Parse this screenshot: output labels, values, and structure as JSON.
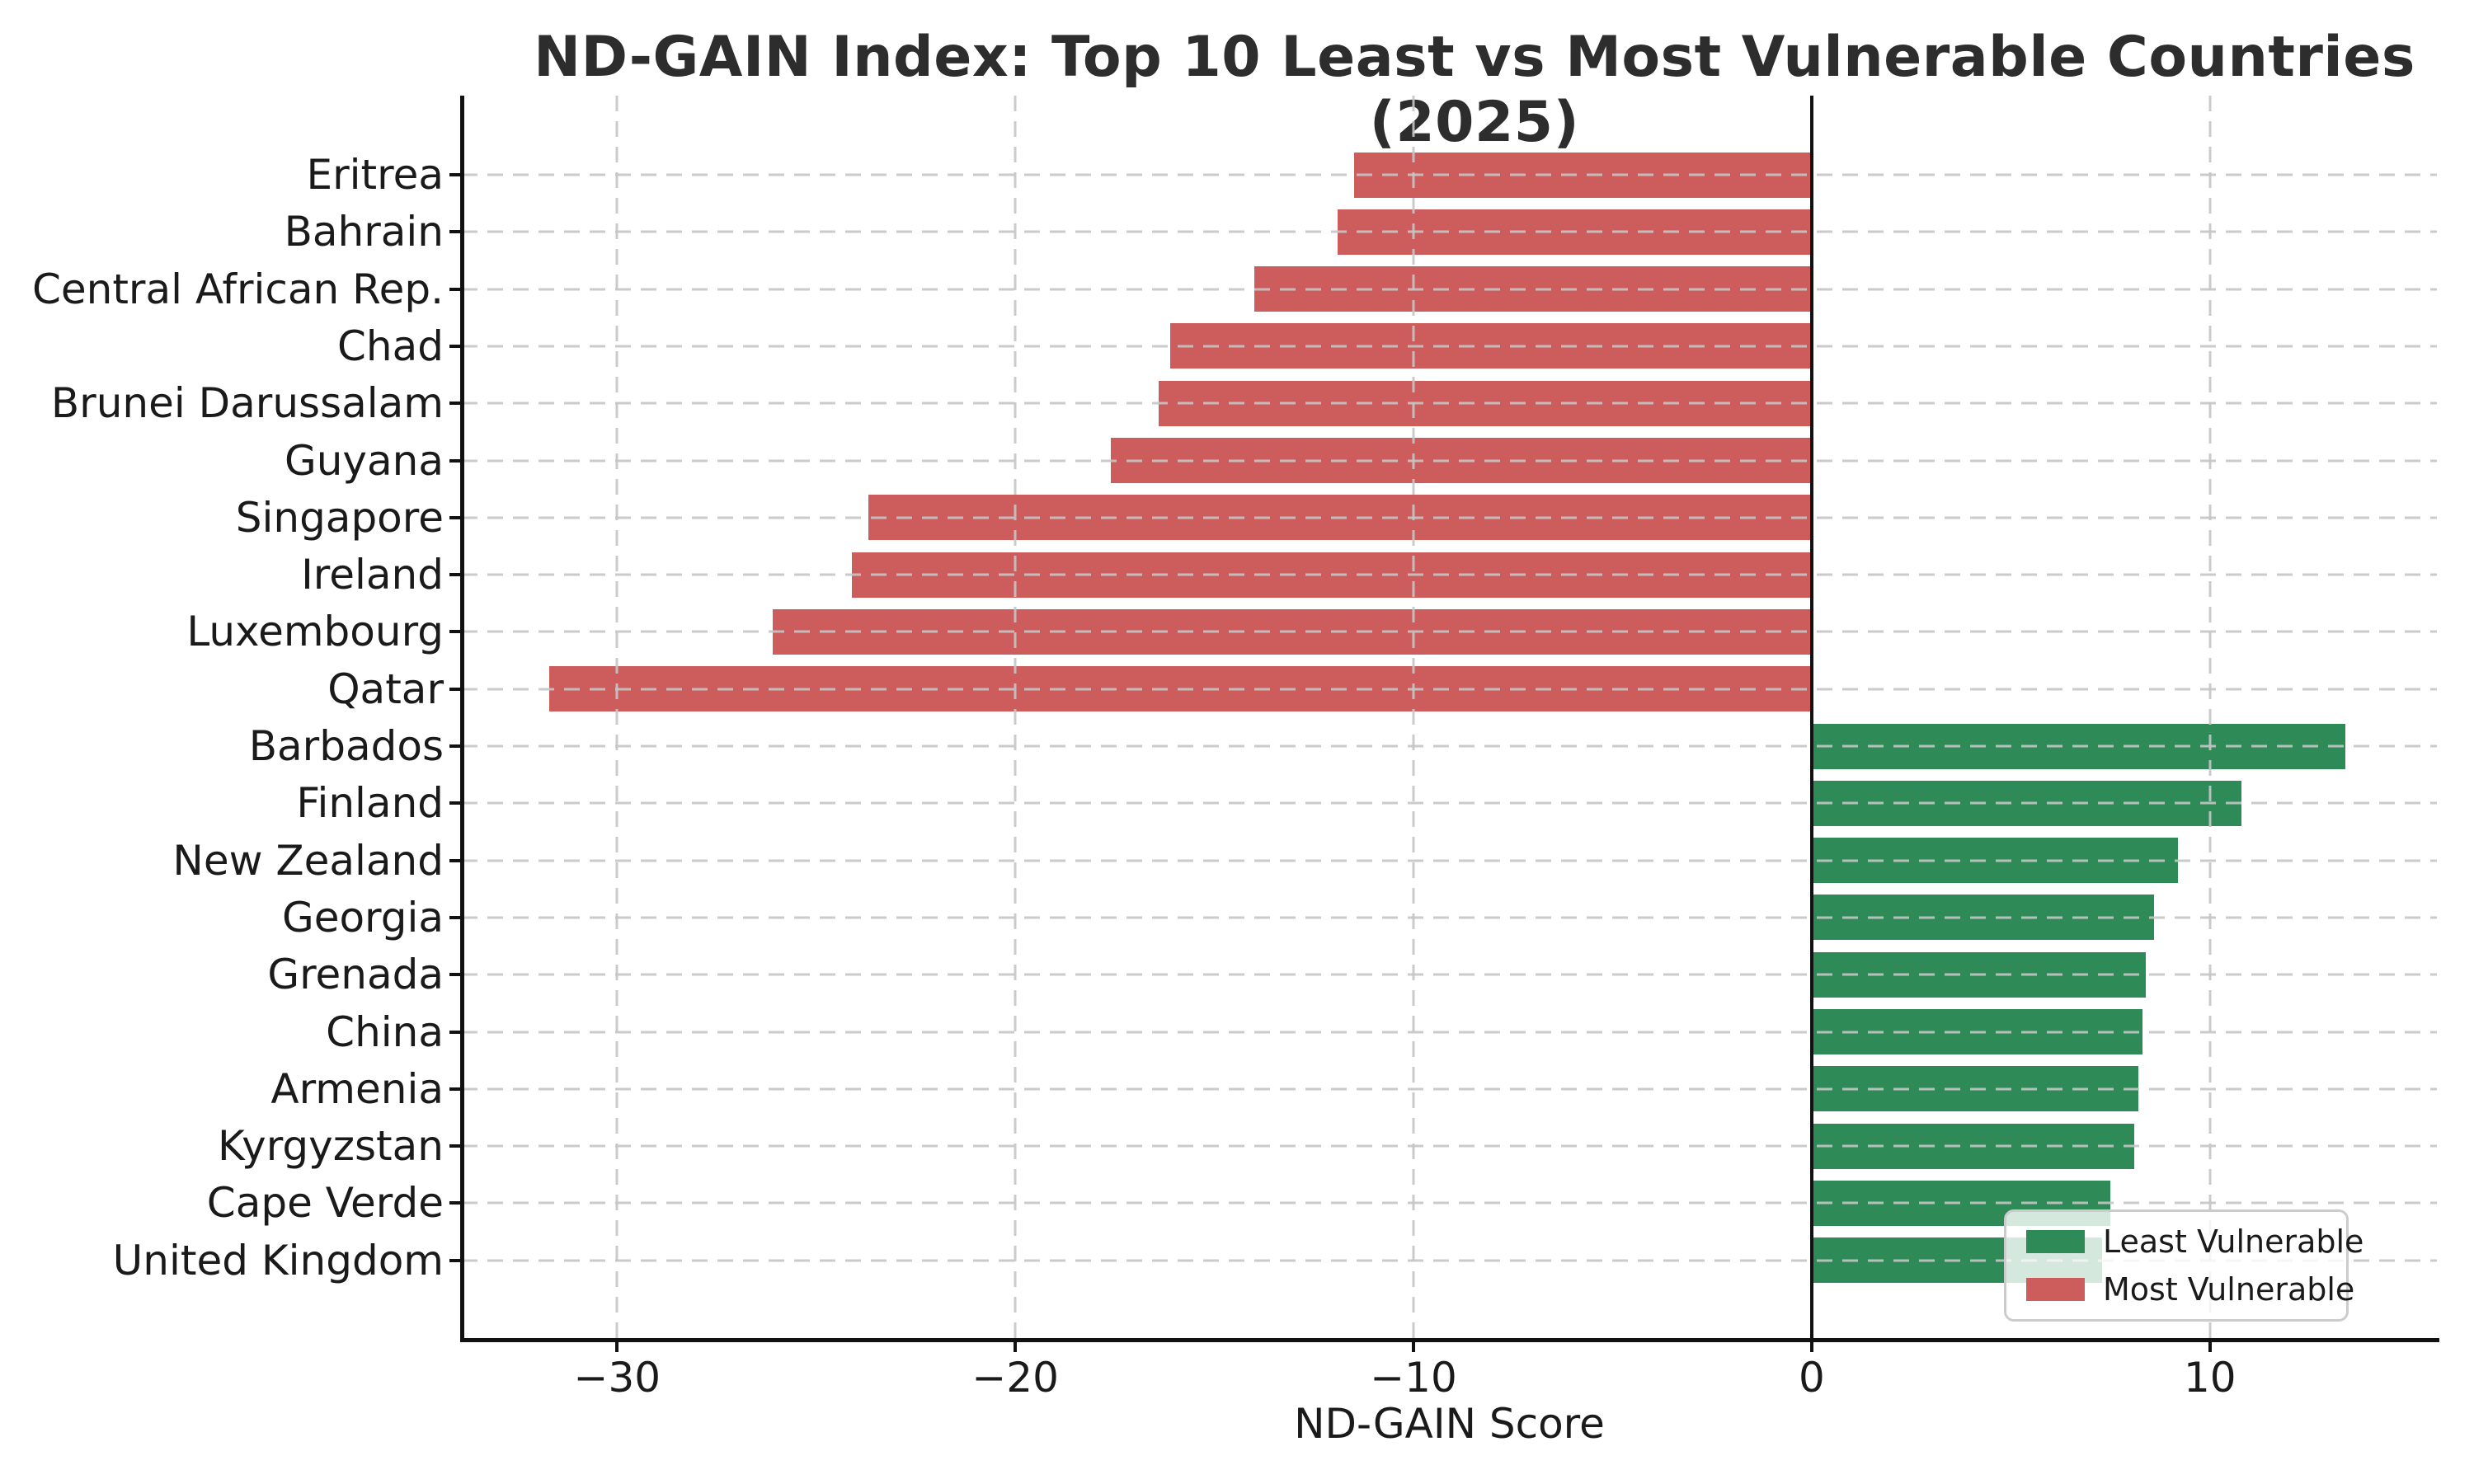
{
  "title": "ND-GAIN Index: Top 10 Least vs Most Vulnerable Countries (2025)",
  "chart_data": {
    "type": "bar",
    "orientation": "horizontal",
    "title": "ND-GAIN Index: Top 10 Least vs Most Vulnerable Countries (2025)",
    "xlabel": "ND-GAIN Score",
    "ylabel": "",
    "xlim": [
      -33.9,
      15.7
    ],
    "grid": "dashed",
    "zero_line_x": 0,
    "legend_position": "lower right",
    "x_ticks": [
      {
        "value": -30,
        "label": "−30"
      },
      {
        "value": -20,
        "label": "−20"
      },
      {
        "value": -10,
        "label": "−10"
      },
      {
        "value": 0,
        "label": "0"
      },
      {
        "value": 10,
        "label": "10"
      }
    ],
    "colors": {
      "least_vulnerable": "#2E8B57",
      "most_vulnerable": "#CD5C5C",
      "grid": "#c5c5c5",
      "axis": "#111111",
      "text": "#1a1a1a",
      "background": "#ffffff"
    },
    "legend": {
      "items": [
        {
          "label": "Least Vulnerable",
          "color_key": "least_vulnerable"
        },
        {
          "label": "Most Vulnerable",
          "color_key": "most_vulnerable"
        }
      ]
    },
    "rows": [
      {
        "country": "Eritrea",
        "value": -11.5,
        "group": "Most Vulnerable"
      },
      {
        "country": "Bahrain",
        "value": -11.9,
        "group": "Most Vulnerable"
      },
      {
        "country": "Central African Rep.",
        "value": -14.0,
        "group": "Most Vulnerable"
      },
      {
        "country": "Chad",
        "value": -16.1,
        "group": "Most Vulnerable"
      },
      {
        "country": "Brunei Darussalam",
        "value": -16.4,
        "group": "Most Vulnerable"
      },
      {
        "country": "Guyana",
        "value": -17.6,
        "group": "Most Vulnerable"
      },
      {
        "country": "Singapore",
        "value": -23.7,
        "group": "Most Vulnerable"
      },
      {
        "country": "Ireland",
        "value": -24.1,
        "group": "Most Vulnerable"
      },
      {
        "country": "Luxembourg",
        "value": -26.1,
        "group": "Most Vulnerable"
      },
      {
        "country": "Qatar",
        "value": -31.7,
        "group": "Most Vulnerable"
      },
      {
        "country": "Barbados",
        "value": 13.4,
        "group": "Least Vulnerable"
      },
      {
        "country": "Finland",
        "value": 10.8,
        "group": "Least Vulnerable"
      },
      {
        "country": "New Zealand",
        "value": 9.2,
        "group": "Least Vulnerable"
      },
      {
        "country": "Georgia",
        "value": 8.6,
        "group": "Least Vulnerable"
      },
      {
        "country": "Grenada",
        "value": 8.4,
        "group": "Least Vulnerable"
      },
      {
        "country": "China",
        "value": 8.3,
        "group": "Least Vulnerable"
      },
      {
        "country": "Armenia",
        "value": 8.2,
        "group": "Least Vulnerable"
      },
      {
        "country": "Kyrgyzstan",
        "value": 8.1,
        "group": "Least Vulnerable"
      },
      {
        "country": "Cape Verde",
        "value": 7.5,
        "group": "Least Vulnerable"
      },
      {
        "country": "United Kingdom",
        "value": 7.3,
        "group": "Least Vulnerable"
      }
    ]
  }
}
